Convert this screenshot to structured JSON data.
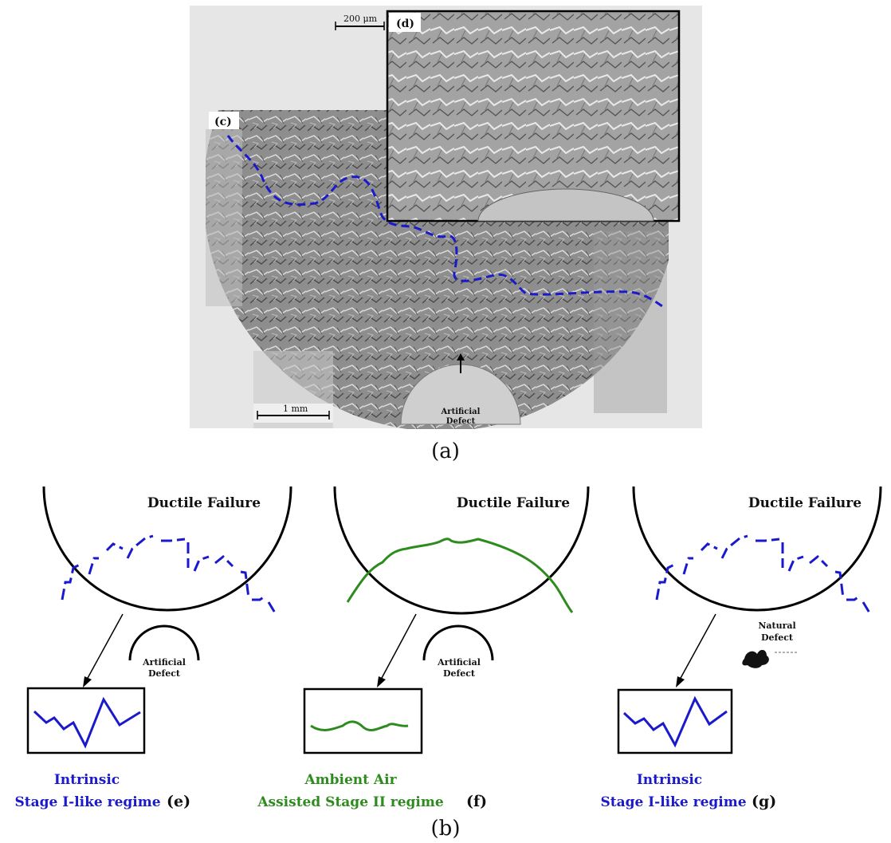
{
  "panel_a": {
    "scale_bar_top": "200 μm",
    "scale_bar_bottom": "1 mm",
    "label_c": "(c)",
    "label_d": "(d)",
    "defect_label_1": "Artificial",
    "defect_label_2": "Defect",
    "caption": "(a)"
  },
  "panel_b": {
    "caption": "(b)",
    "diagrams": [
      {
        "title": "Ductile Failure",
        "defect_line1": "Artificial",
        "defect_line2": "Defect",
        "regime_line1": "Intrinsic",
        "regime_line2": "Stage I-like regime",
        "letter": "(e)",
        "color": "#1a1acc"
      },
      {
        "title": "Ductile Failure",
        "defect_line1": "Artificial",
        "defect_line2": "Defect",
        "regime_line1": "Ambient Air",
        "regime_line2": "Assisted Stage II regime",
        "letter": "(f)",
        "color": "#2e8b1e"
      },
      {
        "title": "Ductile Failure",
        "defect_line1": "Natural",
        "defect_line2": "Defect",
        "regime_line1": "Intrinsic",
        "regime_line2": "Stage I-like regime",
        "letter": "(g)",
        "color": "#1a1acc"
      }
    ]
  }
}
